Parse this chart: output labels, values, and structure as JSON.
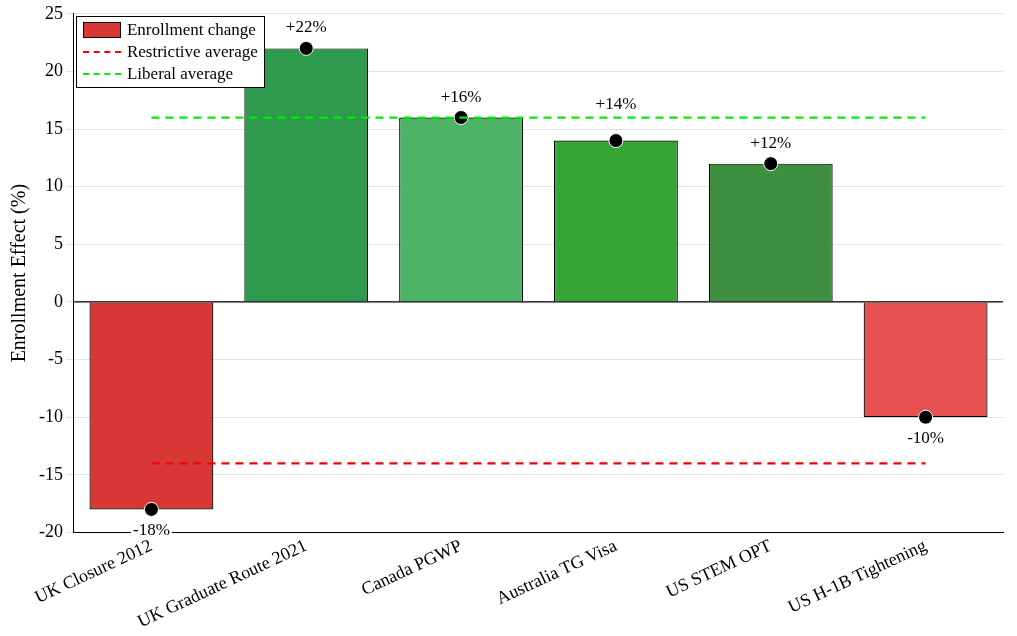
{
  "chart_data": {
    "type": "bar",
    "ylabel": "Enrollment Effect (%)",
    "categories": [
      "UK Closure 2012",
      "UK Graduate Route 2021",
      "Canada PGWP",
      "Australia TG Visa",
      "US STEM OPT",
      "US H-1B Tightening"
    ],
    "series": [
      {
        "name": "Enrollment change",
        "color": "#d93636",
        "colors": [
          "#d93636",
          "#2e9a4e",
          "#4db366",
          "#35a535",
          "#3f8f40",
          "#e65050"
        ],
        "values": [
          -18,
          22,
          16,
          14,
          12,
          -10
        ],
        "value_labels": [
          "-18%",
          "+22%",
          "+16%",
          "+14%",
          "+12%",
          "-10%"
        ]
      },
      {
        "type": "scatter",
        "color": "#000000",
        "x": [
          "UK Closure 2012",
          "UK Graduate Route 2021",
          "Canada PGWP",
          "Australia TG Visa",
          "US STEM OPT",
          "US H-1B Tightening"
        ],
        "values": [
          -18,
          22,
          16,
          14,
          12,
          -10
        ],
        "marker": "circle"
      }
    ],
    "ref_lines": [
      {
        "axis": "y",
        "value": -14,
        "label": "Restrictive average",
        "color": "#ff0000",
        "line_style": "dashed"
      },
      {
        "axis": "y",
        "value": 16,
        "label": "Liberal average",
        "color": "#00ee00",
        "line_style": "dashed"
      }
    ],
    "ylim": [
      -20,
      25
    ],
    "yticks": [
      -20,
      -15,
      -10,
      -5,
      0,
      5,
      10,
      15,
      20,
      25
    ],
    "grid": "y",
    "legend": "top left"
  }
}
